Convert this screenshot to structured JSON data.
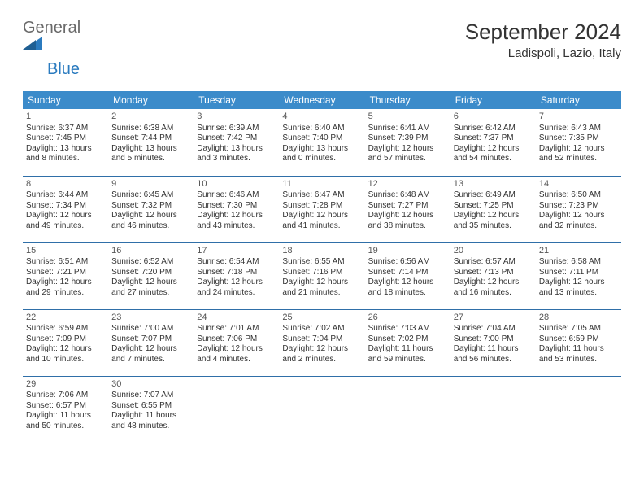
{
  "brand": {
    "word1": "General",
    "word2": "Blue"
  },
  "colors": {
    "header_bg": "#3b8bca",
    "header_text": "#ffffff",
    "divider": "#2f6fa8",
    "logo_gray": "#6a6a6a",
    "logo_blue": "#2b7bbf",
    "text": "#333333",
    "background": "#ffffff"
  },
  "title": "September 2024",
  "location": "Ladispoli, Lazio, Italy",
  "day_headers": [
    "Sunday",
    "Monday",
    "Tuesday",
    "Wednesday",
    "Thursday",
    "Friday",
    "Saturday"
  ],
  "weeks": [
    [
      {
        "n": "1",
        "sr": "Sunrise: 6:37 AM",
        "ss": "Sunset: 7:45 PM",
        "dl": "Daylight: 13 hours and 8 minutes."
      },
      {
        "n": "2",
        "sr": "Sunrise: 6:38 AM",
        "ss": "Sunset: 7:44 PM",
        "dl": "Daylight: 13 hours and 5 minutes."
      },
      {
        "n": "3",
        "sr": "Sunrise: 6:39 AM",
        "ss": "Sunset: 7:42 PM",
        "dl": "Daylight: 13 hours and 3 minutes."
      },
      {
        "n": "4",
        "sr": "Sunrise: 6:40 AM",
        "ss": "Sunset: 7:40 PM",
        "dl": "Daylight: 13 hours and 0 minutes."
      },
      {
        "n": "5",
        "sr": "Sunrise: 6:41 AM",
        "ss": "Sunset: 7:39 PM",
        "dl": "Daylight: 12 hours and 57 minutes."
      },
      {
        "n": "6",
        "sr": "Sunrise: 6:42 AM",
        "ss": "Sunset: 7:37 PM",
        "dl": "Daylight: 12 hours and 54 minutes."
      },
      {
        "n": "7",
        "sr": "Sunrise: 6:43 AM",
        "ss": "Sunset: 7:35 PM",
        "dl": "Daylight: 12 hours and 52 minutes."
      }
    ],
    [
      {
        "n": "8",
        "sr": "Sunrise: 6:44 AM",
        "ss": "Sunset: 7:34 PM",
        "dl": "Daylight: 12 hours and 49 minutes."
      },
      {
        "n": "9",
        "sr": "Sunrise: 6:45 AM",
        "ss": "Sunset: 7:32 PM",
        "dl": "Daylight: 12 hours and 46 minutes."
      },
      {
        "n": "10",
        "sr": "Sunrise: 6:46 AM",
        "ss": "Sunset: 7:30 PM",
        "dl": "Daylight: 12 hours and 43 minutes."
      },
      {
        "n": "11",
        "sr": "Sunrise: 6:47 AM",
        "ss": "Sunset: 7:28 PM",
        "dl": "Daylight: 12 hours and 41 minutes."
      },
      {
        "n": "12",
        "sr": "Sunrise: 6:48 AM",
        "ss": "Sunset: 7:27 PM",
        "dl": "Daylight: 12 hours and 38 minutes."
      },
      {
        "n": "13",
        "sr": "Sunrise: 6:49 AM",
        "ss": "Sunset: 7:25 PM",
        "dl": "Daylight: 12 hours and 35 minutes."
      },
      {
        "n": "14",
        "sr": "Sunrise: 6:50 AM",
        "ss": "Sunset: 7:23 PM",
        "dl": "Daylight: 12 hours and 32 minutes."
      }
    ],
    [
      {
        "n": "15",
        "sr": "Sunrise: 6:51 AM",
        "ss": "Sunset: 7:21 PM",
        "dl": "Daylight: 12 hours and 29 minutes."
      },
      {
        "n": "16",
        "sr": "Sunrise: 6:52 AM",
        "ss": "Sunset: 7:20 PM",
        "dl": "Daylight: 12 hours and 27 minutes."
      },
      {
        "n": "17",
        "sr": "Sunrise: 6:54 AM",
        "ss": "Sunset: 7:18 PM",
        "dl": "Daylight: 12 hours and 24 minutes."
      },
      {
        "n": "18",
        "sr": "Sunrise: 6:55 AM",
        "ss": "Sunset: 7:16 PM",
        "dl": "Daylight: 12 hours and 21 minutes."
      },
      {
        "n": "19",
        "sr": "Sunrise: 6:56 AM",
        "ss": "Sunset: 7:14 PM",
        "dl": "Daylight: 12 hours and 18 minutes."
      },
      {
        "n": "20",
        "sr": "Sunrise: 6:57 AM",
        "ss": "Sunset: 7:13 PM",
        "dl": "Daylight: 12 hours and 16 minutes."
      },
      {
        "n": "21",
        "sr": "Sunrise: 6:58 AM",
        "ss": "Sunset: 7:11 PM",
        "dl": "Daylight: 12 hours and 13 minutes."
      }
    ],
    [
      {
        "n": "22",
        "sr": "Sunrise: 6:59 AM",
        "ss": "Sunset: 7:09 PM",
        "dl": "Daylight: 12 hours and 10 minutes."
      },
      {
        "n": "23",
        "sr": "Sunrise: 7:00 AM",
        "ss": "Sunset: 7:07 PM",
        "dl": "Daylight: 12 hours and 7 minutes."
      },
      {
        "n": "24",
        "sr": "Sunrise: 7:01 AM",
        "ss": "Sunset: 7:06 PM",
        "dl": "Daylight: 12 hours and 4 minutes."
      },
      {
        "n": "25",
        "sr": "Sunrise: 7:02 AM",
        "ss": "Sunset: 7:04 PM",
        "dl": "Daylight: 12 hours and 2 minutes."
      },
      {
        "n": "26",
        "sr": "Sunrise: 7:03 AM",
        "ss": "Sunset: 7:02 PM",
        "dl": "Daylight: 11 hours and 59 minutes."
      },
      {
        "n": "27",
        "sr": "Sunrise: 7:04 AM",
        "ss": "Sunset: 7:00 PM",
        "dl": "Daylight: 11 hours and 56 minutes."
      },
      {
        "n": "28",
        "sr": "Sunrise: 7:05 AM",
        "ss": "Sunset: 6:59 PM",
        "dl": "Daylight: 11 hours and 53 minutes."
      }
    ],
    [
      {
        "n": "29",
        "sr": "Sunrise: 7:06 AM",
        "ss": "Sunset: 6:57 PM",
        "dl": "Daylight: 11 hours and 50 minutes."
      },
      {
        "n": "30",
        "sr": "Sunrise: 7:07 AM",
        "ss": "Sunset: 6:55 PM",
        "dl": "Daylight: 11 hours and 48 minutes."
      },
      null,
      null,
      null,
      null,
      null
    ]
  ]
}
